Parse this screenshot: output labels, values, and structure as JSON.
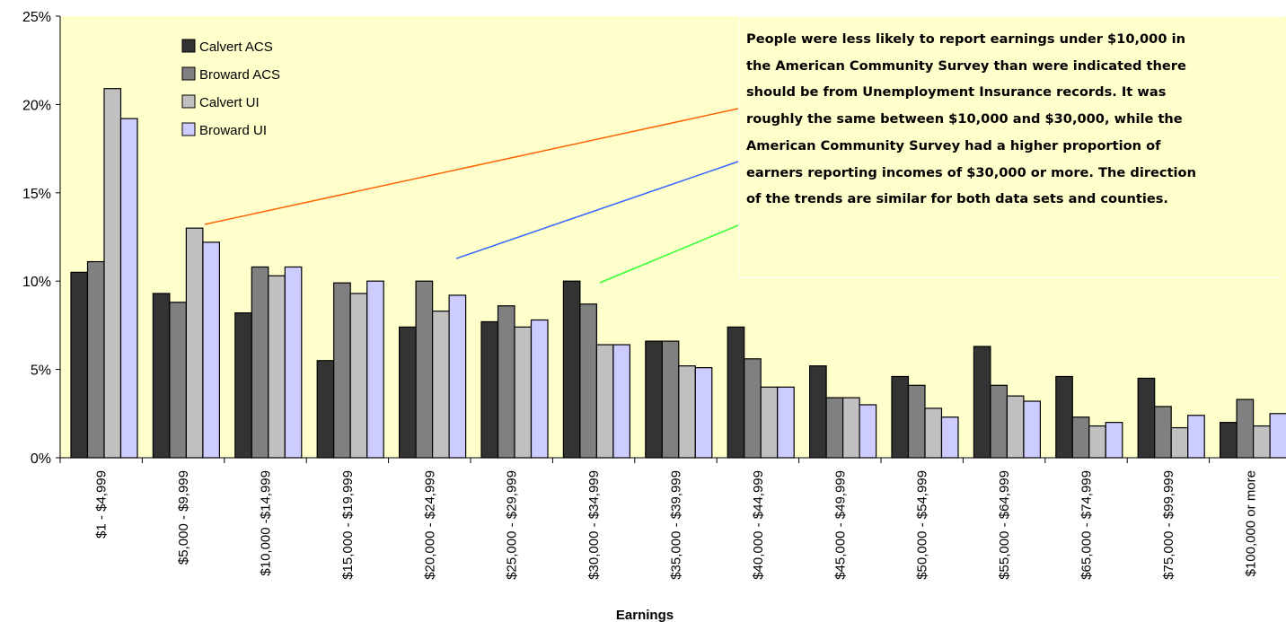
{
  "chart_data": {
    "type": "bar",
    "categories": [
      "$1 - $4,999",
      "$5,000 - $9,999",
      "$10,000 -$14,999",
      "$15,000 - $19,999",
      "$20,000 - $24,999",
      "$25,000 - $29,999",
      "$30,000 - $34,999",
      "$35,000 - $39,999",
      "$40,000 - $44,999",
      "$45,000 - $49,999",
      "$50,000 - $54,999",
      "$55,000 - $64,999",
      "$65,000 - $74,999",
      "$75,000 - $99,999",
      "$100,000 or more"
    ],
    "series": [
      {
        "name": "Calvert ACS",
        "color": "#333333",
        "values": [
          10.5,
          9.3,
          8.2,
          5.5,
          7.4,
          7.7,
          10.0,
          6.6,
          7.4,
          5.2,
          4.6,
          6.3,
          4.6,
          4.5,
          2.0
        ]
      },
      {
        "name": "Broward ACS",
        "color": "#808080",
        "values": [
          11.1,
          8.8,
          10.8,
          9.9,
          10.0,
          8.6,
          8.7,
          6.6,
          5.6,
          3.4,
          4.1,
          4.1,
          2.3,
          2.9,
          3.3
        ]
      },
      {
        "name": "Calvert UI",
        "color": "#c0c0c0",
        "values": [
          20.9,
          13.0,
          10.3,
          9.3,
          8.3,
          7.4,
          6.4,
          5.2,
          4.0,
          3.4,
          2.8,
          3.5,
          1.8,
          1.7,
          1.8
        ]
      },
      {
        "name": "Broward UI",
        "color": "#ccccff",
        "values": [
          19.2,
          12.2,
          10.8,
          10.0,
          9.2,
          7.8,
          6.4,
          5.1,
          4.0,
          3.0,
          2.3,
          3.2,
          2.0,
          2.4,
          2.5
        ]
      }
    ],
    "xlabel": "Earnings",
    "ylabel": "",
    "ylim": [
      0,
      25
    ],
    "yticks": [
      "0%",
      "5%",
      "10%",
      "15%",
      "20%",
      "25%"
    ],
    "grid": false,
    "legend_position": "top-left",
    "plot_background": "#ffffcc",
    "annotation": "People were less likely to report earnings under $10,000 in\nthe American Community Survey than were indicated there\nshould be from Unemployment Insurance records.  It was\nroughly the same between $10,000 and $30,000, while the\nAmerican Community Survey had a higher proportion of\nearners reporting incomes of $30,000 or more.  The direction\nof the trends are similar for both data sets and counties.",
    "pointer_colors": [
      "#ff6600",
      "#3366ff",
      "#33ff33"
    ]
  }
}
